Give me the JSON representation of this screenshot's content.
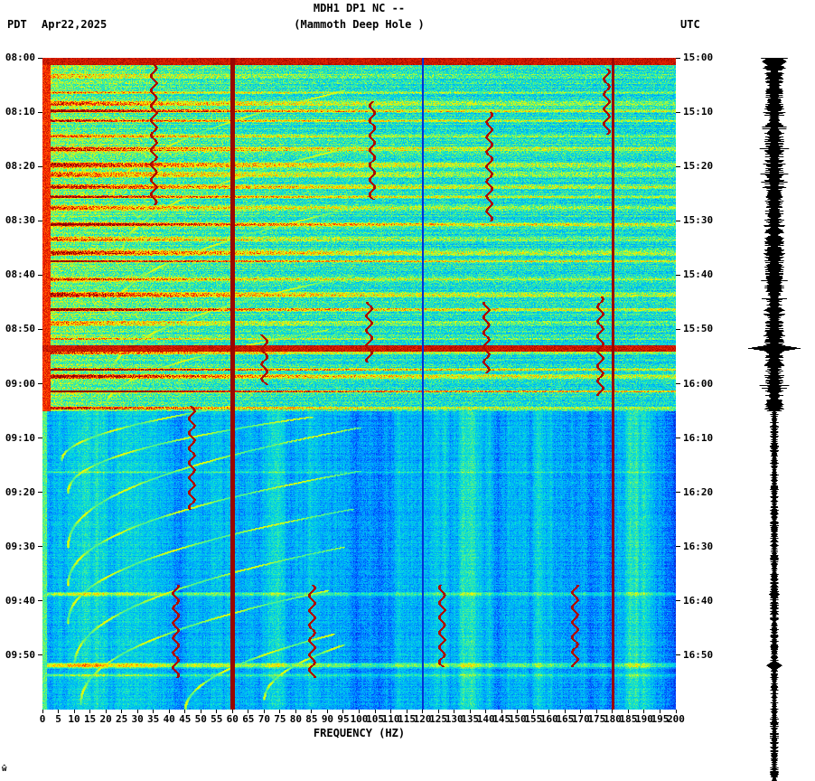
{
  "header": {
    "station_title": "MDH1 DP1 NC --",
    "station_subtitle": "(Mammoth Deep Hole )",
    "left_zone": "PDT",
    "date": "Apr22,2025",
    "right_zone": "UTC"
  },
  "footer": {
    "corner_mark": "ŵ"
  },
  "chart_data": {
    "type": "heatmap",
    "subtype": "spectrogram",
    "title": "MDH1 DP1 NC --",
    "subtitle": "(Mammoth Deep Hole )",
    "xlabel": "FREQUENCY (HZ)",
    "x_range_hz": [
      0,
      200
    ],
    "x_tick_step_hz": 5,
    "x_tick_labels": [
      "0",
      "5",
      "10",
      "15",
      "20",
      "25",
      "30",
      "35",
      "40",
      "45",
      "50",
      "55",
      "60",
      "65",
      "70",
      "75",
      "80",
      "85",
      "90",
      "95",
      "100",
      "105",
      "110",
      "115",
      "120",
      "125",
      "130",
      "135",
      "140",
      "145",
      "150",
      "155",
      "160",
      "165",
      "170",
      "175",
      "180",
      "185",
      "190",
      "195",
      "200"
    ],
    "time_axis_left": {
      "zone": "PDT",
      "minutes_span": 120,
      "tick_interval_min": 10,
      "tick_labels": [
        "08:00",
        "08:10",
        "08:20",
        "08:30",
        "08:40",
        "08:50",
        "09:00",
        "09:10",
        "09:20",
        "09:30",
        "09:40",
        "09:50"
      ]
    },
    "time_axis_right": {
      "zone": "UTC",
      "minutes_span": 120,
      "tick_interval_min": 10,
      "tick_labels": [
        "15:00",
        "15:10",
        "15:20",
        "15:30",
        "15:40",
        "15:50",
        "16:00",
        "16:10",
        "16:20",
        "16:30",
        "16:40",
        "16:50"
      ]
    },
    "colormap": "jet",
    "legend": "none",
    "render": {
      "noisy_until_min": 65,
      "vertical_lines": [
        {
          "hz": 60,
          "w": 1.2,
          "dark": false
        },
        {
          "hz": 120,
          "w": 0.35,
          "dark": true
        },
        {
          "hz": 180,
          "w": 0.5,
          "dark": false
        }
      ],
      "broadband_events": [
        {
          "m": 0.6,
          "w": 1.2
        },
        {
          "m": 53.4,
          "w": 0.9
        }
      ],
      "extra_stripes": [
        {
          "m": 76.2,
          "w": 0.3,
          "i": 0.25
        },
        {
          "m": 98.7,
          "w": 0.5,
          "i": 0.4
        },
        {
          "m": 111.8,
          "w": 0.6,
          "i": 0.55
        },
        {
          "m": 113.6,
          "w": 0.3,
          "i": 0.3
        }
      ],
      "arcs": [
        {
          "t0": 26,
          "f0": 22,
          "t1": 6,
          "f1": 95,
          "k": 2
        },
        {
          "t0": 36,
          "f0": 25,
          "t1": 16,
          "f1": 100,
          "k": 2
        },
        {
          "t0": 47,
          "f0": 22,
          "t1": 28,
          "f1": 95,
          "k": 2
        },
        {
          "t0": 58,
          "f0": 22,
          "t1": 40,
          "f1": 98,
          "k": 2
        },
        {
          "t0": 64,
          "f0": 20,
          "t1": 50,
          "f1": 90,
          "k": 2
        },
        {
          "t0": 74,
          "f0": 6,
          "t1": 64,
          "f1": 60,
          "k": 2
        },
        {
          "t0": 80,
          "f0": 8,
          "t1": 66,
          "f1": 85,
          "k": 2.2
        },
        {
          "t0": 90,
          "f0": 8,
          "t1": 68,
          "f1": 100,
          "k": 2.2
        },
        {
          "t0": 97,
          "f0": 8,
          "t1": 76,
          "f1": 100,
          "k": 2.2
        },
        {
          "t0": 104,
          "f0": 8,
          "t1": 83,
          "f1": 98,
          "k": 2.2
        },
        {
          "t0": 112,
          "f0": 10,
          "t1": 90,
          "f1": 95,
          "k": 2.2
        },
        {
          "t0": 119,
          "f0": 12,
          "t1": 98,
          "f1": 90,
          "k": 2.2
        },
        {
          "t0": 120,
          "f0": 45,
          "t1": 106,
          "f1": 92,
          "k": 2
        },
        {
          "t0": 118,
          "f0": 70,
          "t1": 108,
          "f1": 95,
          "k": 2
        }
      ],
      "traces": [
        {
          "hz": 35,
          "m0": 1,
          "m1": 27
        },
        {
          "hz": 47,
          "m0": 64,
          "m1": 83
        },
        {
          "hz": 42,
          "m0": 97,
          "m1": 114
        },
        {
          "hz": 85,
          "m0": 97,
          "m1": 114
        },
        {
          "hz": 126,
          "m0": 97,
          "m1": 112
        },
        {
          "hz": 168,
          "m0": 97,
          "m1": 112
        },
        {
          "hz": 104,
          "m0": 8,
          "m1": 26
        },
        {
          "hz": 141,
          "m0": 10,
          "m1": 30
        },
        {
          "hz": 178,
          "m0": 2,
          "m1": 14
        },
        {
          "hz": 176,
          "m0": 44,
          "m1": 62
        },
        {
          "hz": 140,
          "m0": 45,
          "m1": 58
        },
        {
          "hz": 103,
          "m0": 45,
          "m1": 56
        },
        {
          "hz": 70,
          "m0": 51,
          "m1": 60
        }
      ],
      "seis_events": [
        {
          "m": 0.6,
          "w": 1.5,
          "amp": 14
        },
        {
          "m": 53.4,
          "w": 0.8,
          "amp": 30
        },
        {
          "m": 98.7,
          "w": 0.8,
          "amp": 6
        },
        {
          "m": 111.8,
          "w": 1.0,
          "amp": 9
        }
      ]
    }
  }
}
